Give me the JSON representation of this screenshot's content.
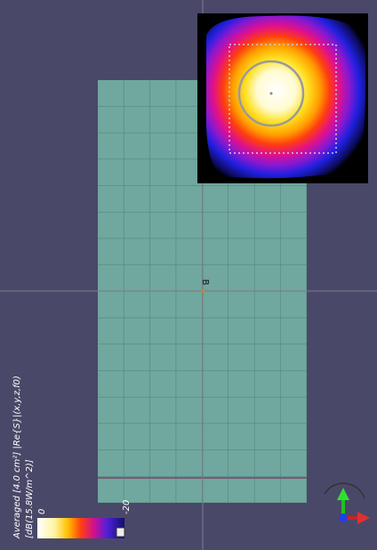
{
  "legend": {
    "title": "Averaged [4.0 cm²] |Re{S}|(x,y,z,f0)",
    "unit": "[dB(15.8W/m^2)]",
    "ticks": [
      "0",
      "-20"
    ]
  },
  "marker_label": "B"
}
